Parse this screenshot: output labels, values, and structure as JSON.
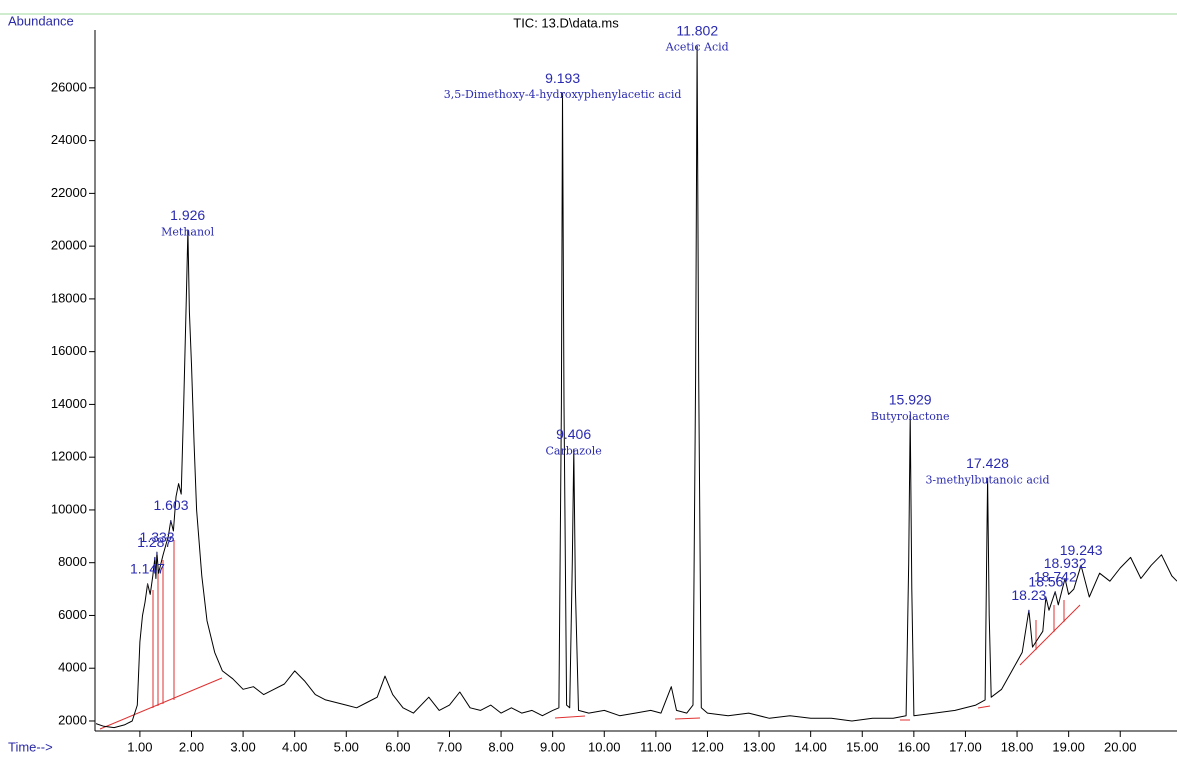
{
  "chart_data": {
    "type": "line",
    "title": "TIC: 13.D\\data.ms",
    "y_label": "Abundance",
    "x_label": "Time-->",
    "line_color": "#000000",
    "label_color": "#2a2ab0",
    "xlim": [
      0.13,
      21.1
    ],
    "ylim": [
      1620,
      28800
    ],
    "xticks": [
      {
        "value": 1,
        "label": "1.00"
      },
      {
        "value": 2,
        "label": "2.00"
      },
      {
        "value": 3,
        "label": "3.00"
      },
      {
        "value": 4,
        "label": "4.00"
      },
      {
        "value": 5,
        "label": "5.00"
      },
      {
        "value": 6,
        "label": "6.00"
      },
      {
        "value": 7,
        "label": "7.00"
      },
      {
        "value": 8,
        "label": "8.00"
      },
      {
        "value": 9,
        "label": "9.00"
      },
      {
        "value": 10,
        "label": "10.00"
      },
      {
        "value": 11,
        "label": "11.00"
      },
      {
        "value": 12,
        "label": "12.00"
      },
      {
        "value": 13,
        "label": "13.00"
      },
      {
        "value": 14,
        "label": "14.00"
      },
      {
        "value": 15,
        "label": "15.00"
      },
      {
        "value": 16,
        "label": "16.00"
      },
      {
        "value": 17,
        "label": "17.00"
      },
      {
        "value": 18,
        "label": "18.00"
      },
      {
        "value": 19,
        "label": "19.00"
      },
      {
        "value": 20,
        "label": "20.00"
      }
    ],
    "yticks": [
      2000,
      4000,
      6000,
      8000,
      10000,
      12000,
      14000,
      16000,
      18000,
      20000,
      22000,
      24000,
      26000
    ],
    "x": [
      0.15,
      0.3,
      0.5,
      0.7,
      0.85,
      0.95,
      1.0,
      1.05,
      1.1,
      1.15,
      1.2,
      1.25,
      1.29,
      1.31,
      1.33,
      1.36,
      1.45,
      1.55,
      1.6,
      1.65,
      1.7,
      1.75,
      1.8,
      1.85,
      1.9,
      1.93,
      1.96,
      2.0,
      2.05,
      2.1,
      2.2,
      2.3,
      2.45,
      2.6,
      2.8,
      3.0,
      3.2,
      3.4,
      3.6,
      3.8,
      4.0,
      4.2,
      4.4,
      4.6,
      4.8,
      5.0,
      5.2,
      5.4,
      5.6,
      5.75,
      5.9,
      6.1,
      6.3,
      6.6,
      6.8,
      7.0,
      7.2,
      7.4,
      7.6,
      7.8,
      8.0,
      8.2,
      8.4,
      8.6,
      8.8,
      9.0,
      9.12,
      9.17,
      9.19,
      9.22,
      9.27,
      9.33,
      9.38,
      9.41,
      9.44,
      9.5,
      9.7,
      10.0,
      10.3,
      10.6,
      10.9,
      11.1,
      11.3,
      11.4,
      11.6,
      11.72,
      11.77,
      11.8,
      11.83,
      11.88,
      12.0,
      12.4,
      12.8,
      13.2,
      13.6,
      14.0,
      14.4,
      14.8,
      15.2,
      15.6,
      15.85,
      15.9,
      15.93,
      15.96,
      16.0,
      16.4,
      16.8,
      17.2,
      17.38,
      17.41,
      17.43,
      17.46,
      17.5,
      17.7,
      17.9,
      18.1,
      18.23,
      18.3,
      18.5,
      18.56,
      18.62,
      18.74,
      18.8,
      18.93,
      19.0,
      19.1,
      19.24,
      19.4,
      19.6,
      19.8,
      20.0,
      20.2,
      20.4,
      20.6,
      20.8,
      21.0,
      21.1
    ],
    "values": [
      1900,
      1800,
      1750,
      1850,
      2000,
      2600,
      5000,
      6000,
      6500,
      7200,
      6800,
      7500,
      8200,
      7400,
      8400,
      7600,
      8300,
      9000,
      9600,
      9200,
      10500,
      11000,
      10600,
      14000,
      18000,
      20600,
      17500,
      15500,
      12500,
      10000,
      7500,
      5800,
      4600,
      3900,
      3600,
      3200,
      3300,
      3000,
      3200,
      3400,
      3900,
      3500,
      3000,
      2800,
      2700,
      2600,
      2500,
      2700,
      2900,
      3700,
      3000,
      2500,
      2300,
      2900,
      2400,
      2600,
      3100,
      2500,
      2400,
      2600,
      2300,
      2500,
      2300,
      2400,
      2200,
      2400,
      2500,
      14000,
      25800,
      14000,
      2600,
      2500,
      8000,
      12300,
      7000,
      2400,
      2300,
      2400,
      2200,
      2300,
      2400,
      2300,
      3300,
      2400,
      2300,
      2600,
      15000,
      27600,
      15000,
      2500,
      2300,
      2200,
      2300,
      2100,
      2200,
      2100,
      2100,
      2000,
      2100,
      2100,
      2200,
      8000,
      13600,
      7000,
      2200,
      2300,
      2400,
      2600,
      2800,
      8000,
      11200,
      6000,
      2900,
      3200,
      3900,
      4600,
      6200,
      4800,
      5400,
      6700,
      6200,
      6900,
      6400,
      7400,
      6800,
      7000,
      7900,
      6700,
      7600,
      7300,
      7800,
      8200,
      7400,
      7900,
      8300,
      7500,
      7300
    ],
    "peaks": [
      {
        "time": 1.147,
        "abundance": 7200
      },
      {
        "time": 1.287,
        "abundance": 8200
      },
      {
        "time": 1.333,
        "abundance": 8400
      },
      {
        "time": 1.603,
        "abundance": 9600
      },
      {
        "time": 1.926,
        "abundance": 20600,
        "name": "Methanol"
      },
      {
        "time": 9.193,
        "abundance": 25800,
        "name": "3,5-Dimethoxy-4-hydroxyphenylacetic acid"
      },
      {
        "time": 9.406,
        "abundance": 12300,
        "name": "Carbazole"
      },
      {
        "time": 11.802,
        "abundance": 27600,
        "name": "Acetic Acid"
      },
      {
        "time": 15.929,
        "abundance": 13600,
        "name": "Butyrolactone"
      },
      {
        "time": 17.428,
        "abundance": 11200,
        "name": "3-methylbutanoic acid"
      },
      {
        "time": 18.23,
        "abundance": 6200
      },
      {
        "time": 18.56,
        "abundance": 6700
      },
      {
        "time": 18.742,
        "abundance": 6900
      },
      {
        "time": 18.932,
        "abundance": 7400
      },
      {
        "time": 19.243,
        "abundance": 7900
      }
    ]
  }
}
